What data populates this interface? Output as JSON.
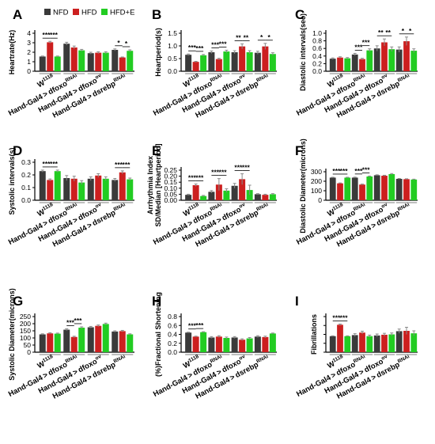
{
  "colors": {
    "NFD": "#3a3a3a",
    "HFD": "#cc1f1f",
    "HFD+E": "#22cc22",
    "error": "#8a8a8a"
  },
  "legend": [
    {
      "name": "NFD",
      "label": "NFD"
    },
    {
      "name": "HFD",
      "label": "HFD"
    },
    {
      "name": "HFD+E",
      "label": "HFD+E"
    }
  ],
  "chart_data": [
    {
      "letter": "A",
      "type": "bar",
      "ylabel": "Heartrate(Hz)",
      "ylim": [
        0,
        4
      ],
      "yticks": [
        "0",
        "1",
        "2",
        "3",
        "4"
      ],
      "categories": [
        "W1118",
        "Hand-Gal4>dfoxoRNAi",
        "Hand-Gal4>dfoxoOV",
        "Hand-Gal4>dsrebpRNAi"
      ],
      "series": [
        {
          "name": "NFD",
          "values": [
            1.55,
            2.9,
            1.9,
            2.25
          ],
          "errors": [
            0.05,
            0.15,
            0.1,
            0.1
          ]
        },
        {
          "name": "HFD",
          "values": [
            3.05,
            2.5,
            1.95,
            1.45
          ],
          "errors": [
            0.1,
            0.15,
            0.1,
            0.05
          ]
        },
        {
          "name": "HFD+E",
          "values": [
            1.55,
            2.2,
            1.95,
            2.15
          ],
          "errors": [
            0.05,
            0.1,
            0.1,
            0.1
          ]
        }
      ],
      "significance": [
        {
          "group": 0,
          "from": 0,
          "to": 1,
          "label": "***"
        },
        {
          "group": 0,
          "from": 1,
          "to": 2,
          "label": "***"
        },
        {
          "group": 3,
          "from": 0,
          "to": 1,
          "label": "*"
        },
        {
          "group": 3,
          "from": 1,
          "to": 2,
          "label": "*"
        }
      ]
    },
    {
      "letter": "B",
      "type": "bar",
      "ylabel": "Heartperiod(s)",
      "ylim": [
        0,
        1.5
      ],
      "yticks": [
        "0.0",
        "0.5",
        "1.0",
        "1.5"
      ],
      "categories": [
        "W1118",
        "Hand-Gal4>dfoxoRNAi",
        "Hand-Gal4>dfoxoOV",
        "Hand-Gal4>dsrebpRNAi"
      ],
      "series": [
        {
          "name": "NFD",
          "values": [
            0.65,
            0.75,
            0.75,
            0.73
          ],
          "errors": [
            0.03,
            0.05,
            0.06,
            0.06
          ]
        },
        {
          "name": "HFD",
          "values": [
            0.37,
            0.48,
            0.98,
            0.98
          ],
          "errors": [
            0.02,
            0.03,
            0.1,
            0.12
          ]
        },
        {
          "name": "HFD+E",
          "values": [
            0.63,
            0.78,
            0.75,
            0.68
          ],
          "errors": [
            0.03,
            0.05,
            0.06,
            0.05
          ]
        }
      ],
      "significance": [
        {
          "group": 0,
          "from": 0,
          "to": 1,
          "label": "***"
        },
        {
          "group": 0,
          "from": 1,
          "to": 2,
          "label": "***"
        },
        {
          "group": 1,
          "from": 0,
          "to": 1,
          "label": "***"
        },
        {
          "group": 1,
          "from": 1,
          "to": 2,
          "label": "***"
        },
        {
          "group": 2,
          "from": 0,
          "to": 1,
          "label": "**"
        },
        {
          "group": 2,
          "from": 1,
          "to": 2,
          "label": "**"
        },
        {
          "group": 3,
          "from": 0,
          "to": 1,
          "label": "*"
        },
        {
          "group": 3,
          "from": 1,
          "to": 2,
          "label": "*"
        }
      ]
    },
    {
      "letter": "C",
      "type": "bar",
      "ylabel": "Diastolic intervals(sec)",
      "ylim": [
        0,
        1.0
      ],
      "yticks": [
        "0.0",
        "0.2",
        "0.4",
        "0.6",
        "0.8",
        "1.0"
      ],
      "categories": [
        "W1118",
        "Hand-Gal4>dfoxoRNAi",
        "Hand-Gal4>dfoxoOV",
        "Hand-Gal4>dsrebpRNAi"
      ],
      "series": [
        {
          "name": "NFD",
          "values": [
            0.33,
            0.44,
            0.6,
            0.57
          ],
          "errors": [
            0.02,
            0.03,
            0.07,
            0.07
          ]
        },
        {
          "name": "HFD",
          "values": [
            0.36,
            0.32,
            0.76,
            0.79
          ],
          "errors": [
            0.02,
            0.02,
            0.09,
            0.11
          ]
        },
        {
          "name": "HFD+E",
          "values": [
            0.34,
            0.55,
            0.58,
            0.54
          ],
          "errors": [
            0.02,
            0.04,
            0.06,
            0.05
          ]
        }
      ],
      "significance": [
        {
          "group": 1,
          "from": 0,
          "to": 1,
          "label": "***"
        },
        {
          "group": 1,
          "from": 1,
          "to": 2,
          "label": "***"
        },
        {
          "group": 2,
          "from": 0,
          "to": 1,
          "label": "**"
        },
        {
          "group": 2,
          "from": 1,
          "to": 2,
          "label": "**"
        },
        {
          "group": 3,
          "from": 0,
          "to": 1,
          "label": "*"
        },
        {
          "group": 3,
          "from": 1,
          "to": 2,
          "label": "*"
        }
      ]
    },
    {
      "letter": "D",
      "type": "bar",
      "ylabel": "Systolic intervals(s)",
      "ylim": [
        0,
        0.3
      ],
      "yticks": [
        "0.0",
        "0.1",
        "0.2",
        "0.3"
      ],
      "categories": [
        "W1118",
        "Hand-Gal4>dfoxoRNAi",
        "Hand-Gal4>dfoxoOV",
        "Hand-Gal4>dsrebpRNAi"
      ],
      "series": [
        {
          "name": "NFD",
          "values": [
            0.23,
            0.175,
            0.17,
            0.16
          ],
          "errors": [
            0.008,
            0.02,
            0.015,
            0.012
          ]
        },
        {
          "name": "HFD",
          "values": [
            0.16,
            0.17,
            0.195,
            0.22
          ],
          "errors": [
            0.008,
            0.02,
            0.015,
            0.012
          ]
        },
        {
          "name": "HFD+E",
          "values": [
            0.23,
            0.14,
            0.17,
            0.165
          ],
          "errors": [
            0.008,
            0.015,
            0.015,
            0.01
          ]
        }
      ],
      "significance": [
        {
          "group": 0,
          "from": 0,
          "to": 1,
          "label": "***"
        },
        {
          "group": 0,
          "from": 1,
          "to": 2,
          "label": "***"
        },
        {
          "group": 3,
          "from": 0,
          "to": 1,
          "label": "***"
        },
        {
          "group": 3,
          "from": 1,
          "to": 2,
          "label": "***"
        }
      ]
    },
    {
      "letter": "E",
      "type": "bar",
      "ylabel": "Arrhythmia Index\nSD/Median [Heartperiod]",
      "ylim": [
        0,
        0.25
      ],
      "yticks": [
        "0.00",
        "0.05",
        "0.10",
        "0.15",
        "0.20",
        "0.25"
      ],
      "categories": [
        "W1118",
        "Hand-Gal4>dfoxoRNAi",
        "Hand-Gal4>dfoxoOV",
        "Hand-Gal4>dsrebpRNAi"
      ],
      "series": [
        {
          "name": "NFD",
          "values": [
            0.045,
            0.07,
            0.12,
            0.05
          ],
          "errors": [
            0.005,
            0.01,
            0.02,
            0.005
          ]
        },
        {
          "name": "HFD",
          "values": [
            0.125,
            0.13,
            0.175,
            0.045
          ],
          "errors": [
            0.01,
            0.05,
            0.045,
            0.005
          ]
        },
        {
          "name": "HFD+E",
          "values": [
            0.035,
            0.08,
            0.085,
            0.05
          ],
          "errors": [
            0.005,
            0.015,
            0.04,
            0.005
          ]
        }
      ],
      "significance": [
        {
          "group": 0,
          "from": 0,
          "to": 1,
          "label": "***"
        },
        {
          "group": 0,
          "from": 1,
          "to": 2,
          "label": "***"
        },
        {
          "group": 1,
          "from": 0,
          "to": 1,
          "label": "***"
        },
        {
          "group": 1,
          "from": 1,
          "to": 2,
          "label": "***"
        },
        {
          "group": 2,
          "from": 0,
          "to": 1,
          "label": "***"
        },
        {
          "group": 2,
          "from": 1,
          "to": 2,
          "label": "***"
        }
      ]
    },
    {
      "letter": "F",
      "type": "bar",
      "ylabel": "Diastolic Diameter(microns)",
      "ylim": [
        0,
        300
      ],
      "yticks": [
        "0",
        "100",
        "200",
        "300"
      ],
      "categories": [
        "W1118",
        "Hand-Gal4>dfoxoRNAi",
        "Hand-Gal4>dfoxoOV",
        "Hand-Gal4>dsrebpRNAi"
      ],
      "series": [
        {
          "name": "NFD",
          "values": [
            238,
            238,
            263,
            225
          ],
          "errors": [
            4,
            5,
            5,
            4
          ]
        },
        {
          "name": "HFD",
          "values": [
            178,
            165,
            258,
            222
          ],
          "errors": [
            4,
            5,
            5,
            4
          ]
        },
        {
          "name": "HFD+E",
          "values": [
            238,
            250,
            275,
            218
          ],
          "errors": [
            4,
            5,
            6,
            4
          ]
        }
      ],
      "significance": [
        {
          "group": 0,
          "from": 0,
          "to": 1,
          "label": "***"
        },
        {
          "group": 0,
          "from": 1,
          "to": 2,
          "label": "***"
        },
        {
          "group": 1,
          "from": 0,
          "to": 1,
          "label": "***"
        },
        {
          "group": 1,
          "from": 1,
          "to": 2,
          "label": "***"
        }
      ]
    },
    {
      "letter": "G",
      "type": "bar",
      "ylabel": "Systolic Diameter(microns)",
      "ylim": [
        0,
        250
      ],
      "yticks": [
        "0",
        "50",
        "100",
        "150",
        "200",
        "250"
      ],
      "categories": [
        "W1118",
        "Hand-Gal4>dfoxoRNAi",
        "Hand-Gal4>dfoxoOV",
        "Hand-Gal4>dsrebpRNAi"
      ],
      "series": [
        {
          "name": "NFD",
          "values": [
            125,
            158,
            175,
            145
          ],
          "errors": [
            4,
            6,
            6,
            5
          ]
        },
        {
          "name": "HFD",
          "values": [
            132,
            107,
            185,
            148
          ],
          "errors": [
            4,
            5,
            6,
            5
          ]
        },
        {
          "name": "HFD+E",
          "values": [
            130,
            172,
            198,
            125
          ],
          "errors": [
            4,
            6,
            6,
            4
          ]
        }
      ],
      "significance": [
        {
          "group": 1,
          "from": 0,
          "to": 1,
          "label": "***"
        },
        {
          "group": 1,
          "from": 1,
          "to": 2,
          "label": "***"
        }
      ]
    },
    {
      "letter": "H",
      "type": "bar",
      "ylabel": "(%)Fractional Shortening",
      "ylim": [
        0,
        0.8
      ],
      "yticks": [
        "0.0",
        "0.2",
        "0.4",
        "0.6",
        "0.8"
      ],
      "categories": [
        "W1118",
        "Hand-Gal4>dfoxoRNAi",
        "Hand-Gal4>dfoxoOV",
        "Hand-Gal4>dsrebpRNAi"
      ],
      "series": [
        {
          "name": "NFD",
          "values": [
            0.44,
            0.33,
            0.33,
            0.35
          ],
          "errors": [
            0.01,
            0.02,
            0.02,
            0.02
          ]
        },
        {
          "name": "HFD",
          "values": [
            0.35,
            0.35,
            0.28,
            0.34
          ],
          "errors": [
            0.01,
            0.02,
            0.02,
            0.02
          ]
        },
        {
          "name": "HFD+E",
          "values": [
            0.45,
            0.32,
            0.31,
            0.42
          ],
          "errors": [
            0.01,
            0.02,
            0.02,
            0.01
          ]
        }
      ],
      "significance": [
        {
          "group": 0,
          "from": 0,
          "to": 1,
          "label": "***"
        },
        {
          "group": 0,
          "from": 1,
          "to": 2,
          "label": "***"
        }
      ]
    },
    {
      "letter": "I",
      "type": "bar",
      "ylabel": "Fibrillations",
      "ylim": [
        0,
        1.0
      ],
      "yticks": [
        "",
        "",
        "",
        "",
        ""
      ],
      "categories": [
        "W1118",
        "Hand-Gal4>dfoxoRNAi",
        "Hand-Gal4>dfoxoOV",
        "Hand-Gal4>dsrebpRNAi"
      ],
      "series": [
        {
          "name": "NFD",
          "values": [
            0.45,
            0.48,
            0.47,
            0.59
          ],
          "errors": [
            0.01,
            0.04,
            0.04,
            0.06
          ]
        },
        {
          "name": "HFD",
          "values": [
            0.77,
            0.55,
            0.49,
            0.6
          ],
          "errors": [
            0.02,
            0.04,
            0.04,
            0.1
          ]
        },
        {
          "name": "HFD+E",
          "values": [
            0.45,
            0.45,
            0.5,
            0.53
          ],
          "errors": [
            0.01,
            0.03,
            0.04,
            0.07
          ]
        }
      ],
      "significance": [
        {
          "group": 0,
          "from": 0,
          "to": 1,
          "label": "***"
        },
        {
          "group": 0,
          "from": 1,
          "to": 2,
          "label": "***"
        }
      ]
    }
  ]
}
